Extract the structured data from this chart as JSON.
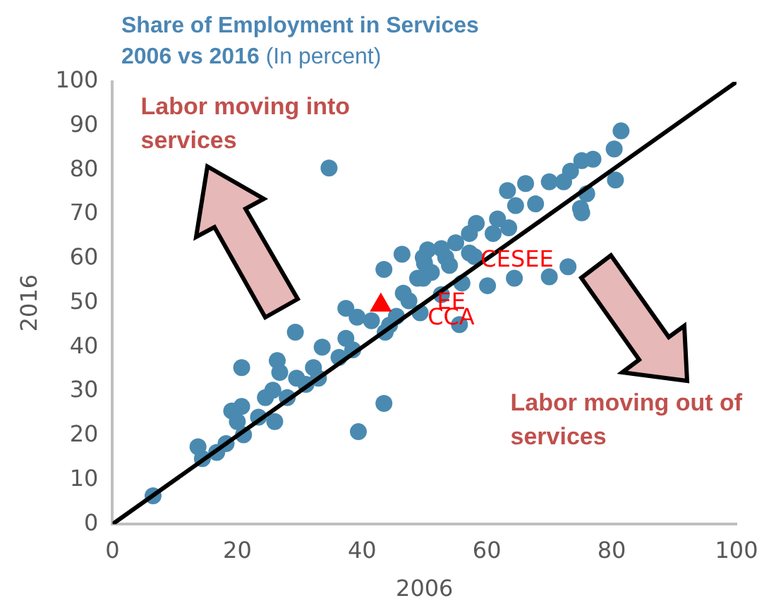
{
  "chart_data": {
    "type": "scatter",
    "title": "Share of Employment in Services",
    "subtitle": "2006 vs 2016 (In percent)",
    "xlabel": "2006",
    "ylabel": "2016",
    "xlim": [
      0,
      100
    ],
    "ylim": [
      0,
      100
    ],
    "xticks": [
      0,
      20,
      40,
      60,
      80,
      100
    ],
    "yticks": [
      0,
      10,
      20,
      30,
      40,
      50,
      60,
      70,
      80,
      90,
      100
    ],
    "grid": false,
    "legend": false,
    "marker": "circle",
    "series": [
      {
        "color": "#4a8ab0",
        "x": [
          6.5,
          13.7,
          14.4,
          16.7,
          18.2,
          19.1,
          20.7,
          20,
          21,
          23.4,
          24.5,
          25.7,
          26,
          28,
          29.5,
          31,
          33,
          20.7,
          26.4,
          26.8,
          32.2,
          33.6,
          36.3,
          29.3,
          37.4,
          38.5,
          37.4,
          39.2,
          34.7,
          39.4,
          43.5,
          43.5,
          46.4,
          43.7,
          44.4,
          49.8,
          48.9,
          46.6,
          49.3,
          81.5,
          80.4,
          80.6,
          75.2,
          75.2,
          77,
          73.4,
          72.3,
          70,
          66.2,
          63.3,
          67.8,
          64.6,
          61.7,
          58.3,
          57.2,
          61,
          63.5,
          55,
          52.7,
          50.5,
          50,
          53.4,
          57.2,
          73,
          70,
          64.4,
          60.1,
          56,
          49.8,
          55.6,
          52.7,
          51.1,
          47.5,
          75,
          76,
          54,
          58,
          45.5,
          41.5
        ],
        "values": [
          6.4,
          17.5,
          14.8,
          16.2,
          18.2,
          25.6,
          26.6,
          23.2,
          20.2,
          24.2,
          28.6,
          30.3,
          23.2,
          28.6,
          33,
          31.6,
          33,
          35.4,
          37,
          34.3,
          35.4,
          40,
          37.7,
          43.4,
          42,
          39.4,
          48.8,
          46.8,
          80.5,
          20.9,
          27.3,
          57.6,
          61,
          43.4,
          45,
          60.3,
          55.6,
          52.2,
          47.8,
          88.9,
          84.8,
          77.8,
          70.4,
          82.2,
          82.5,
          79.8,
          77.4,
          77.4,
          77,
          75.4,
          72.4,
          72,
          69,
          68,
          65.7,
          65.7,
          67,
          63.6,
          62.3,
          62,
          59,
          60.3,
          61.3,
          58.2,
          55.9,
          55.6,
          53.9,
          54.5,
          55.6,
          45.1,
          51.9,
          56.9,
          50.5,
          71.4,
          74.7,
          58.5,
          60.5,
          47,
          46
        ]
      },
      {
        "color": "#ff0000",
        "marker": "triangle",
        "x": [
          43
        ],
        "values": [
          49.5
        ]
      },
      {
        "type": "line",
        "marker": "none",
        "color": "#000000",
        "x": [
          0,
          100
        ],
        "values": [
          0,
          100
        ]
      }
    ],
    "annotations": [
      "Labor moving into services",
      "Labor moving out of services",
      {
        "text": "CESEE",
        "x": 59,
        "y": 59.5
      },
      {
        "text": "EE",
        "x": 52,
        "y": 50
      },
      {
        "text": "CCA",
        "x": 50.5,
        "y": 46.5
      }
    ]
  }
}
